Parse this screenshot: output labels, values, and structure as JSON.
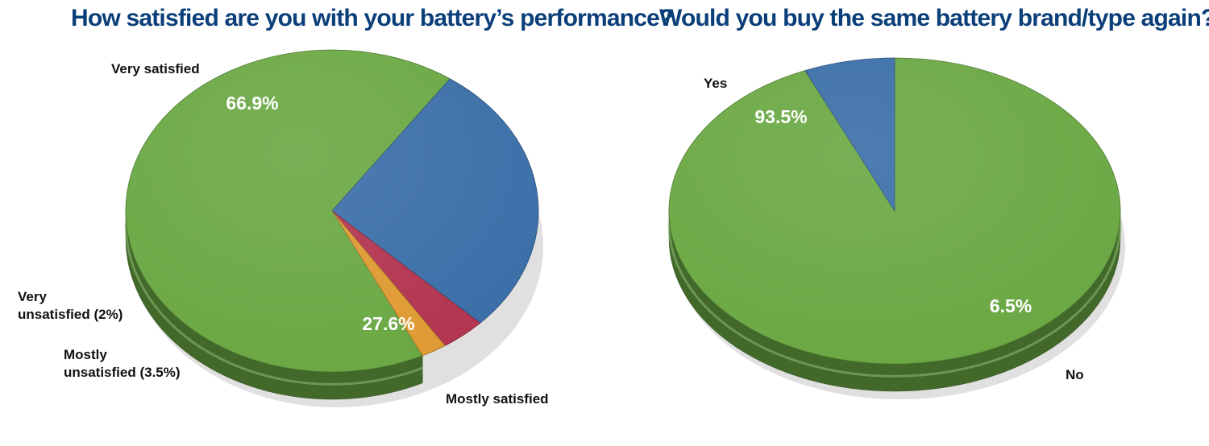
{
  "chart_data": [
    {
      "type": "pie",
      "title": "How satisfied are you with your battery’s performance?",
      "categories": [
        "Very satisfied",
        "Mostly satisfied",
        "Mostly unsatisfied (3.5%)",
        "Very unsatisfied (2%)"
      ],
      "values": [
        66.9,
        27.6,
        3.5,
        2.0
      ],
      "data_labels": [
        "66.9%",
        "27.6%",
        "",
        ""
      ],
      "colors": [
        "#6aa843",
        "#3a6ea8",
        "#b3344f",
        "#df9a32"
      ]
    },
    {
      "type": "pie",
      "title": "Would you buy the same battery brand/type again?",
      "categories": [
        "Yes",
        "No"
      ],
      "values": [
        93.5,
        6.5
      ],
      "data_labels": [
        "93.5%",
        "6.5%"
      ],
      "colors": [
        "#6aa843",
        "#3a6ea8"
      ]
    }
  ]
}
